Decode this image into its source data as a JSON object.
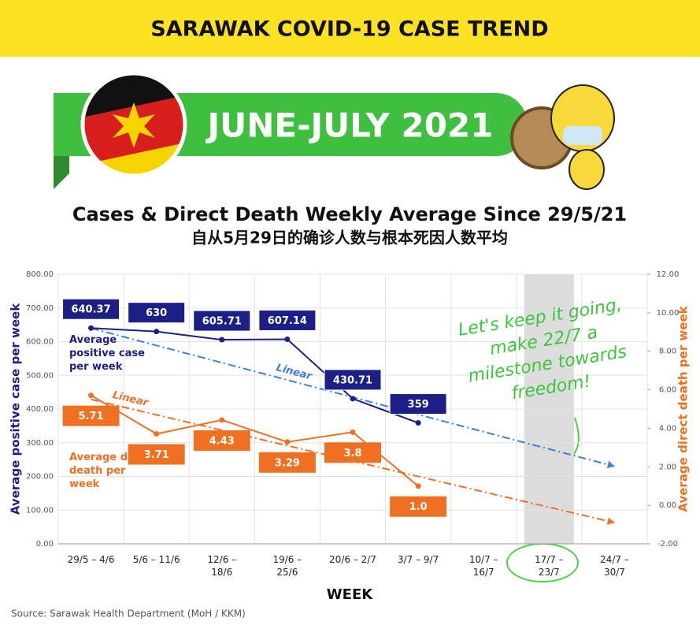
{
  "header": {
    "title": "SARAWAK COVID-19 CASE TREND",
    "banner": "JUNE-JULY 2021"
  },
  "chart_data": {
    "type": "line",
    "title": "Cases & Direct Death Weekly Average Since 29/5/21",
    "subtitle": "自从5月29日的确诊人数与根本死因人数平均",
    "xlabel": "WEEK",
    "ylabel": "Average positive case per week",
    "y2label": "Average direct death per week",
    "categories": [
      "29/5 – 4/6",
      "5/6 – 11/6",
      "12/6 – 18/6",
      "19/6 – 25/6",
      "20/6 – 2/7",
      "3/7 – 9/7",
      "10/7 – 16/7",
      "17/7 – 23/7",
      "24/7 – 30/7"
    ],
    "highlight": 7,
    "series": [
      {
        "name": "Average positive case per week",
        "color": "#1c1f86",
        "axis": "y",
        "values": [
          640.37,
          630,
          605.71,
          607.14,
          430.71,
          359,
          null,
          null,
          null
        ]
      },
      {
        "name": "Average direct death per week",
        "color": "#f07022",
        "axis": "y2",
        "values": [
          5.71,
          3.71,
          4.43,
          3.29,
          3.8,
          1.0,
          null,
          null,
          null
        ],
        "value_labels": [
          "5.71",
          "3.71",
          "4.43",
          "3.29",
          "3.8",
          "1.0",
          null,
          null,
          null
        ]
      }
    ],
    "trendlines": [
      {
        "label": "Linear",
        "color": "#3b7fd9",
        "axis": "y",
        "values": [
          640,
          230
        ]
      },
      {
        "label": "Linear",
        "color": "#f07022",
        "axis": "y2",
        "values": [
          5.5,
          -0.9
        ]
      }
    ],
    "ylim": [
      0,
      800
    ],
    "yticks": [
      {
        "value": 0,
        "label": "0.00"
      },
      {
        "value": 100,
        "label": "100.00"
      },
      {
        "value": 200,
        "label": "200.00"
      },
      {
        "value": 300,
        "label": "300.00"
      },
      {
        "value": 400,
        "label": "400.00"
      },
      {
        "value": 500,
        "label": "500.00"
      },
      {
        "value": 600,
        "label": "600.00"
      },
      {
        "value": 700,
        "label": "700.00"
      },
      {
        "value": 800,
        "label": "800.00"
      }
    ],
    "y2lim": [
      -2,
      12
    ],
    "y2ticks": [
      {
        "value": -2,
        "label": "-2.00"
      },
      {
        "value": 0,
        "label": "0.00"
      },
      {
        "value": 2,
        "label": "2.00"
      },
      {
        "value": 4,
        "label": "4.00"
      },
      {
        "value": 6,
        "label": "6.00"
      },
      {
        "value": 8,
        "label": "8.00"
      },
      {
        "value": 10,
        "label": "10.00"
      },
      {
        "value": 12,
        "label": "12.00"
      }
    ],
    "grid": true,
    "annotation": "Let's keep it going, make 22/7 a milestone towards freedom!",
    "source": "Source: Sarawak Health Department (MoH / KKM)"
  }
}
